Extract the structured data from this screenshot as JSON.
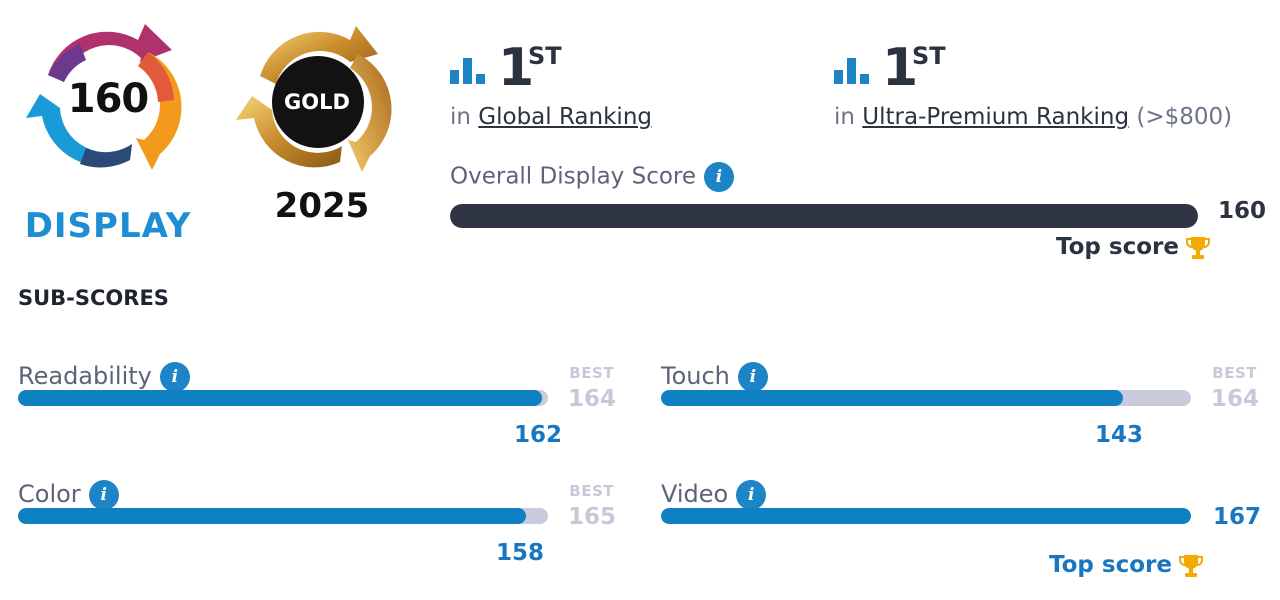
{
  "badges": {
    "score_badge": {
      "number": "160",
      "label": "DISPLAY"
    },
    "award_badge": {
      "text": "GOLD",
      "year": "2025"
    }
  },
  "rankings": [
    {
      "rank": "1",
      "suffix": "ST",
      "prefix": "in",
      "link_text": "Global Ranking",
      "extra": ""
    },
    {
      "rank": "1",
      "suffix": "ST",
      "prefix": "in",
      "link_text": "Ultra-Premium Ranking",
      "extra": "(>$800)"
    }
  ],
  "overall": {
    "label": "Overall Display Score",
    "value": "160",
    "fill_fraction": 1.0,
    "top_score_label": "Top score"
  },
  "subscores": {
    "title": "SUB-SCORES",
    "items": [
      {
        "label": "Readability",
        "value": "162",
        "best_label": "BEST",
        "best": "164",
        "fill_fraction": 0.988
      },
      {
        "label": "Touch",
        "value": "143",
        "best_label": "BEST",
        "best": "164",
        "fill_fraction": 0.872
      },
      {
        "label": "Color",
        "value": "158",
        "best_label": "BEST",
        "best": "165",
        "fill_fraction": 0.958
      },
      {
        "label": "Video",
        "value": "167",
        "best_label": "",
        "best": "",
        "fill_fraction": 1.0,
        "top_score_label": "Top score"
      }
    ]
  },
  "colors": {
    "accent_blue": "#1d84c6",
    "bar_dark": "#2e3442",
    "bar_track": "#c7cbdc",
    "trophy": "#f2a900"
  },
  "icons": [
    "ranking-bars-icon",
    "info-icon",
    "trophy-icon"
  ]
}
